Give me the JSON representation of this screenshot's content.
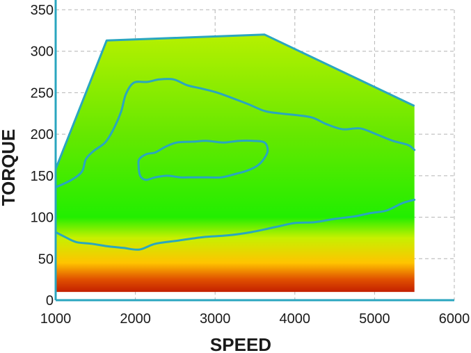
{
  "chart_data": {
    "type": "area",
    "xlabel": "SPEED",
    "ylabel": "TORQUE",
    "xlim": [
      1000,
      6000
    ],
    "ylim": [
      0,
      350
    ],
    "x_ticks": [
      "1000",
      "2000",
      "3000",
      "4000",
      "5000",
      "6000"
    ],
    "y_ticks": [
      "0",
      "50",
      "100",
      "150",
      "200",
      "250",
      "300",
      "350"
    ],
    "grid": true,
    "colors": {
      "axis": "#2aa6bf",
      "contour": "#2aa6bf",
      "gradient_stops": [
        {
          "torque": 0,
          "color": "#b00000"
        },
        {
          "torque": 25,
          "color": "#e05000"
        },
        {
          "torque": 45,
          "color": "#ffc400"
        },
        {
          "torque": 75,
          "color": "#c7f000"
        },
        {
          "torque": 100,
          "color": "#22ee00"
        },
        {
          "torque": 200,
          "color": "#66e800"
        },
        {
          "torque": 320,
          "color": "#b6f000"
        }
      ]
    },
    "envelope": [
      [
        1000,
        158
      ],
      [
        1640,
        313
      ],
      [
        3620,
        320
      ],
      [
        5500,
        234
      ],
      [
        5500,
        10
      ],
      [
        1000,
        10
      ]
    ],
    "contours": [
      {
        "closed": false,
        "points": [
          [
            1000,
            136
          ],
          [
            1200,
            145
          ],
          [
            1330,
            155
          ],
          [
            1380,
            170
          ],
          [
            1480,
            180
          ],
          [
            1620,
            190
          ],
          [
            1720,
            205
          ],
          [
            1820,
            227
          ],
          [
            1880,
            248
          ],
          [
            1980,
            262
          ],
          [
            2150,
            263
          ],
          [
            2300,
            266
          ],
          [
            2480,
            266
          ],
          [
            2650,
            259
          ],
          [
            2830,
            255
          ],
          [
            3030,
            250
          ],
          [
            3230,
            243
          ],
          [
            3420,
            236
          ],
          [
            3620,
            228
          ],
          [
            3820,
            225
          ],
          [
            4020,
            223
          ],
          [
            4220,
            220
          ],
          [
            4400,
            212
          ],
          [
            4600,
            206
          ],
          [
            4820,
            207
          ],
          [
            5020,
            200
          ],
          [
            5230,
            192
          ],
          [
            5420,
            187
          ],
          [
            5500,
            181
          ]
        ]
      },
      {
        "closed": true,
        "points": [
          [
            2050,
            170
          ],
          [
            2140,
            176
          ],
          [
            2250,
            178
          ],
          [
            2380,
            185
          ],
          [
            2520,
            190
          ],
          [
            2720,
            191
          ],
          [
            2900,
            192
          ],
          [
            3100,
            190
          ],
          [
            3300,
            192
          ],
          [
            3480,
            192
          ],
          [
            3620,
            190
          ],
          [
            3660,
            180
          ],
          [
            3610,
            170
          ],
          [
            3530,
            162
          ],
          [
            3400,
            156
          ],
          [
            3250,
            152
          ],
          [
            3080,
            148
          ],
          [
            2900,
            148
          ],
          [
            2720,
            148
          ],
          [
            2560,
            148
          ],
          [
            2400,
            150
          ],
          [
            2250,
            148
          ],
          [
            2130,
            145
          ],
          [
            2060,
            150
          ],
          [
            2040,
            162
          ]
        ]
      },
      {
        "closed": false,
        "points": [
          [
            1000,
            82
          ],
          [
            1120,
            76
          ],
          [
            1260,
            70
          ],
          [
            1450,
            68
          ],
          [
            1650,
            65
          ],
          [
            1850,
            63
          ],
          [
            2050,
            61
          ],
          [
            2250,
            68
          ],
          [
            2550,
            72
          ],
          [
            2850,
            76
          ],
          [
            3150,
            78
          ],
          [
            3450,
            82
          ],
          [
            3750,
            88
          ],
          [
            4000,
            93
          ],
          [
            4250,
            94
          ],
          [
            4500,
            98
          ],
          [
            4750,
            101
          ],
          [
            4950,
            105
          ],
          [
            5150,
            108
          ],
          [
            5350,
            117
          ],
          [
            5500,
            121
          ]
        ]
      }
    ]
  }
}
